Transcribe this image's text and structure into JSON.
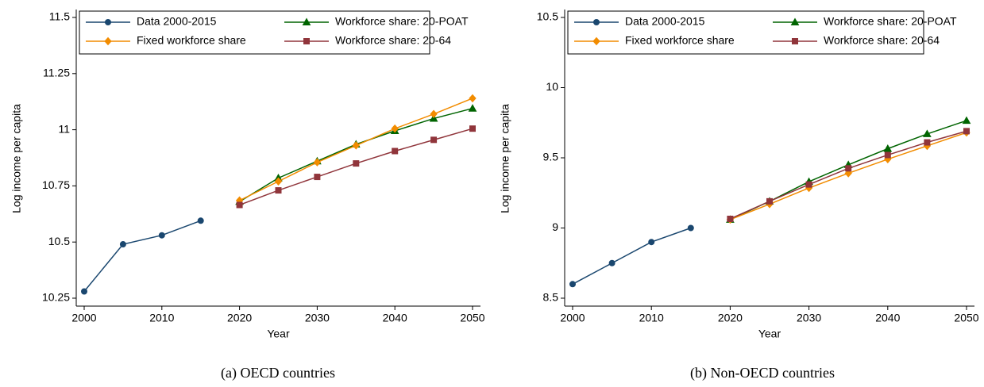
{
  "chart_data": [
    {
      "type": "line",
      "caption": "(a) OECD countries",
      "x_label": "Year",
      "y_label": "Log income per capita",
      "x": [
        2000,
        2005,
        2010,
        2015,
        2020,
        2025,
        2030,
        2035,
        2040,
        2045,
        2050
      ],
      "xlim": [
        2000,
        2050
      ],
      "xticks": [
        2000,
        2010,
        2020,
        2030,
        2040,
        2050
      ],
      "ylim": [
        10.25,
        11.5
      ],
      "yticks": [
        10.25,
        10.5,
        10.75,
        11,
        11.25,
        11.5
      ],
      "series": [
        {
          "name": "Data 2000-2015",
          "color": "#1a476f",
          "marker": "circle",
          "values": [
            10.28,
            10.49,
            10.53,
            10.595,
            null,
            null,
            null,
            null,
            null,
            null,
            null
          ]
        },
        {
          "name": "Workforce share: 20-POAT",
          "color": "#006400",
          "marker": "triangle",
          "values": [
            null,
            null,
            null,
            null,
            10.68,
            10.785,
            10.86,
            10.935,
            10.995,
            11.05,
            11.095
          ]
        },
        {
          "name": "Fixed workforce share",
          "color": "#f28c00",
          "marker": "diamond",
          "values": [
            null,
            null,
            null,
            null,
            10.685,
            10.77,
            10.855,
            10.93,
            11.005,
            11.07,
            11.14
          ]
        },
        {
          "name": "Workforce share: 20-64",
          "color": "#90353b",
          "marker": "square",
          "values": [
            null,
            null,
            null,
            null,
            10.665,
            10.73,
            10.79,
            10.85,
            10.905,
            10.955,
            11.005
          ]
        }
      ]
    },
    {
      "type": "line",
      "caption": "(b) Non-OECD countries",
      "x_label": "Year",
      "y_label": "Log income per capita",
      "x": [
        2000,
        2005,
        2010,
        2015,
        2020,
        2025,
        2030,
        2035,
        2040,
        2045,
        2050
      ],
      "xlim": [
        2000,
        2050
      ],
      "xticks": [
        2000,
        2010,
        2020,
        2030,
        2040,
        2050
      ],
      "ylim": [
        8.5,
        10.5
      ],
      "yticks": [
        8.5,
        9,
        9.5,
        10,
        10.5
      ],
      "series": [
        {
          "name": "Data 2000-2015",
          "color": "#1a476f",
          "marker": "circle",
          "values": [
            8.6,
            8.75,
            8.9,
            9.0,
            null,
            null,
            null,
            null,
            null,
            null,
            null
          ]
        },
        {
          "name": "Workforce share: 20-POAT",
          "color": "#006400",
          "marker": "triangle",
          "values": [
            null,
            null,
            null,
            null,
            9.06,
            9.19,
            9.33,
            9.45,
            9.565,
            9.67,
            9.765
          ]
        },
        {
          "name": "Fixed workforce share",
          "color": "#f28c00",
          "marker": "diamond",
          "values": [
            null,
            null,
            null,
            null,
            9.06,
            9.17,
            9.285,
            9.39,
            9.49,
            9.585,
            9.68
          ]
        },
        {
          "name": "Workforce share: 20-64",
          "color": "#90353b",
          "marker": "square",
          "values": [
            null,
            null,
            null,
            null,
            9.065,
            9.19,
            9.31,
            9.425,
            9.52,
            9.61,
            9.69
          ]
        }
      ]
    }
  ]
}
